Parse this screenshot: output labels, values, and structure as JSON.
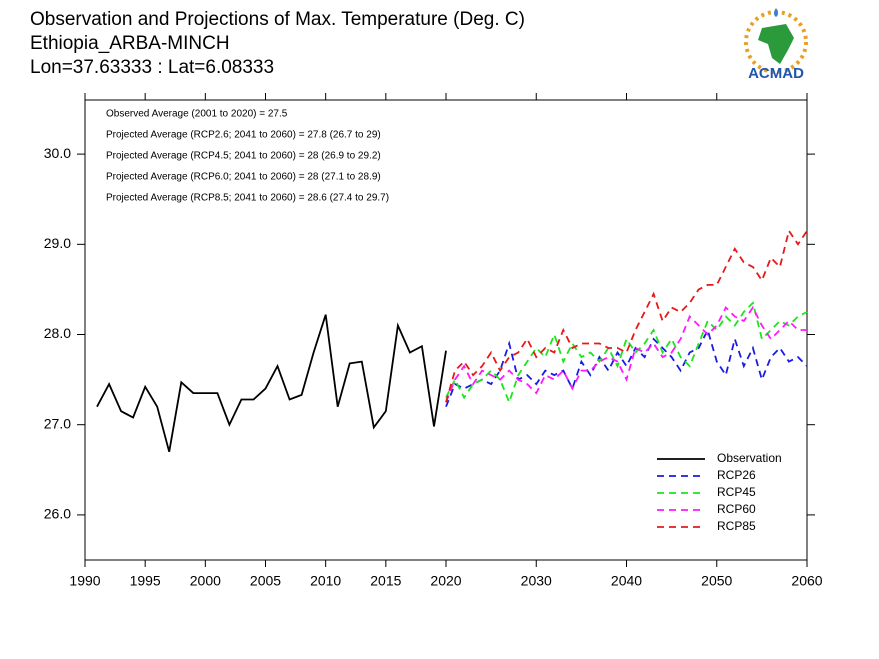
{
  "chart_data": {
    "type": "line",
    "title": [
      "Observation and Projections of Max. Temperature (Deg. C)",
      "Ethiopia_ARBA-MINCH",
      "Lon=37.63333 : Lat=6.08333"
    ],
    "logo": "ACMAD",
    "annotations": [
      "Observed Average (2001 to 2020) = 27.5",
      "Projected Average (RCP2.6; 2041 to 2060) = 27.8 (26.7 to 29)",
      "Projected Average (RCP4.5; 2041 to 2060) = 28 (26.9 to 29.2)",
      "Projected Average (RCP6.0; 2041 to 2060) = 28 (27.1 to 28.9)",
      "Projected Average (RCP8.5; 2041 to 2060) = 28.6 (27.4 to 29.7)"
    ],
    "xlim": [
      1990,
      2060
    ],
    "xticks": [
      1990,
      1995,
      2000,
      2005,
      2010,
      2015,
      2020,
      2030,
      2040,
      2050,
      2060
    ],
    "ylim": [
      25.5,
      30.6
    ],
    "yticks": [
      {
        "value": 26,
        "label": "26.0"
      },
      {
        "value": 27,
        "label": "27.0"
      },
      {
        "value": 28,
        "label": "28.0"
      },
      {
        "value": 29,
        "label": "29.0"
      },
      {
        "value": 30,
        "label": "30.0"
      }
    ],
    "legend": "lower right",
    "series": [
      {
        "name": "Observation",
        "color": "#000000",
        "dashed": false,
        "x": [
          1991,
          1992,
          1993,
          1994,
          1995,
          1996,
          1997,
          1998,
          1999,
          2000,
          2001,
          2002,
          2003,
          2004,
          2005,
          2006,
          2007,
          2008,
          2009,
          2010,
          2011,
          2012,
          2013,
          2014,
          2015,
          2016,
          2017,
          2018,
          2019,
          2020
        ],
        "values": [
          27.2,
          27.45,
          27.15,
          27.08,
          27.42,
          27.2,
          26.7,
          27.47,
          27.35,
          27.35,
          27.35,
          27.0,
          27.28,
          27.28,
          27.4,
          27.65,
          27.28,
          27.33,
          27.8,
          28.22,
          27.2,
          27.68,
          27.7,
          26.97,
          27.15,
          28.1,
          27.8,
          27.87,
          26.98,
          27.82
        ]
      },
      {
        "name": "RCP26",
        "color": "#1a1ae6",
        "dashed": true,
        "x": [
          2020,
          2021,
          2022,
          2023,
          2024,
          2025,
          2026,
          2027,
          2028,
          2029,
          2030,
          2031,
          2032,
          2033,
          2034,
          2035,
          2036,
          2037,
          2038,
          2039,
          2040,
          2041,
          2042,
          2043,
          2044,
          2045,
          2046,
          2047,
          2048,
          2049,
          2050,
          2051,
          2052,
          2053,
          2054,
          2055,
          2056,
          2057,
          2058,
          2059,
          2060
        ],
        "values": [
          27.2,
          27.45,
          27.4,
          27.45,
          27.5,
          27.45,
          27.6,
          27.9,
          27.5,
          27.55,
          27.45,
          27.6,
          27.55,
          27.6,
          27.4,
          27.7,
          27.55,
          27.75,
          27.6,
          27.8,
          27.65,
          27.85,
          27.75,
          27.95,
          27.85,
          27.75,
          27.6,
          27.8,
          27.85,
          28.05,
          27.7,
          27.55,
          27.95,
          27.65,
          27.85,
          27.5,
          27.75,
          27.85,
          27.7,
          27.75,
          27.65
        ]
      },
      {
        "name": "RCP45",
        "color": "#19e619",
        "dashed": true,
        "x": [
          2020,
          2021,
          2022,
          2023,
          2024,
          2025,
          2026,
          2027,
          2028,
          2029,
          2030,
          2031,
          2032,
          2033,
          2034,
          2035,
          2036,
          2037,
          2038,
          2039,
          2040,
          2041,
          2042,
          2043,
          2044,
          2045,
          2046,
          2047,
          2048,
          2049,
          2050,
          2051,
          2052,
          2053,
          2054,
          2055,
          2056,
          2057,
          2058,
          2059,
          2060
        ],
        "values": [
          27.3,
          27.5,
          27.3,
          27.45,
          27.5,
          27.6,
          27.5,
          27.25,
          27.55,
          27.7,
          27.85,
          27.75,
          28.0,
          27.7,
          27.9,
          27.75,
          27.8,
          27.7,
          27.85,
          27.65,
          27.95,
          27.8,
          27.9,
          28.05,
          27.8,
          27.95,
          27.75,
          27.65,
          27.9,
          28.15,
          28.05,
          28.2,
          28.1,
          28.25,
          28.35,
          27.95,
          28.05,
          28.15,
          28.1,
          28.2,
          28.25
        ]
      },
      {
        "name": "RCP60",
        "color": "#ff19ff",
        "dashed": true,
        "x": [
          2020,
          2021,
          2022,
          2023,
          2024,
          2025,
          2026,
          2027,
          2028,
          2029,
          2030,
          2031,
          2032,
          2033,
          2034,
          2035,
          2036,
          2037,
          2038,
          2039,
          2040,
          2041,
          2042,
          2043,
          2044,
          2045,
          2046,
          2047,
          2048,
          2049,
          2050,
          2051,
          2052,
          2053,
          2054,
          2055,
          2056,
          2057,
          2058,
          2059,
          2060
        ],
        "values": [
          27.25,
          27.5,
          27.65,
          27.45,
          27.6,
          27.55,
          27.5,
          27.6,
          27.5,
          27.45,
          27.35,
          27.55,
          27.5,
          27.6,
          27.4,
          27.6,
          27.6,
          27.7,
          27.75,
          27.7,
          27.5,
          27.85,
          27.8,
          27.9,
          27.75,
          27.8,
          27.95,
          28.2,
          28.1,
          28.0,
          28.1,
          28.3,
          28.2,
          28.15,
          28.3,
          28.1,
          27.95,
          28.05,
          28.15,
          28.05,
          28.05
        ]
      },
      {
        "name": "RCP85",
        "color": "#e61919",
        "dashed": true,
        "x": [
          2020,
          2021,
          2022,
          2023,
          2024,
          2025,
          2026,
          2027,
          2028,
          2029,
          2030,
          2031,
          2032,
          2033,
          2034,
          2035,
          2036,
          2037,
          2038,
          2039,
          2040,
          2041,
          2042,
          2043,
          2044,
          2045,
          2046,
          2047,
          2048,
          2049,
          2050,
          2051,
          2052,
          2053,
          2054,
          2055,
          2056,
          2057,
          2058,
          2059,
          2060
        ],
        "values": [
          27.25,
          27.6,
          27.7,
          27.55,
          27.65,
          27.8,
          27.6,
          27.75,
          27.8,
          27.95,
          27.75,
          27.85,
          27.8,
          28.05,
          27.85,
          27.9,
          27.9,
          27.9,
          27.85,
          27.85,
          27.8,
          28.05,
          28.25,
          28.45,
          28.15,
          28.3,
          28.25,
          28.35,
          28.5,
          28.55,
          28.55,
          28.75,
          28.95,
          28.8,
          28.75,
          28.6,
          28.85,
          28.75,
          29.15,
          29.0,
          29.15
        ]
      }
    ]
  }
}
